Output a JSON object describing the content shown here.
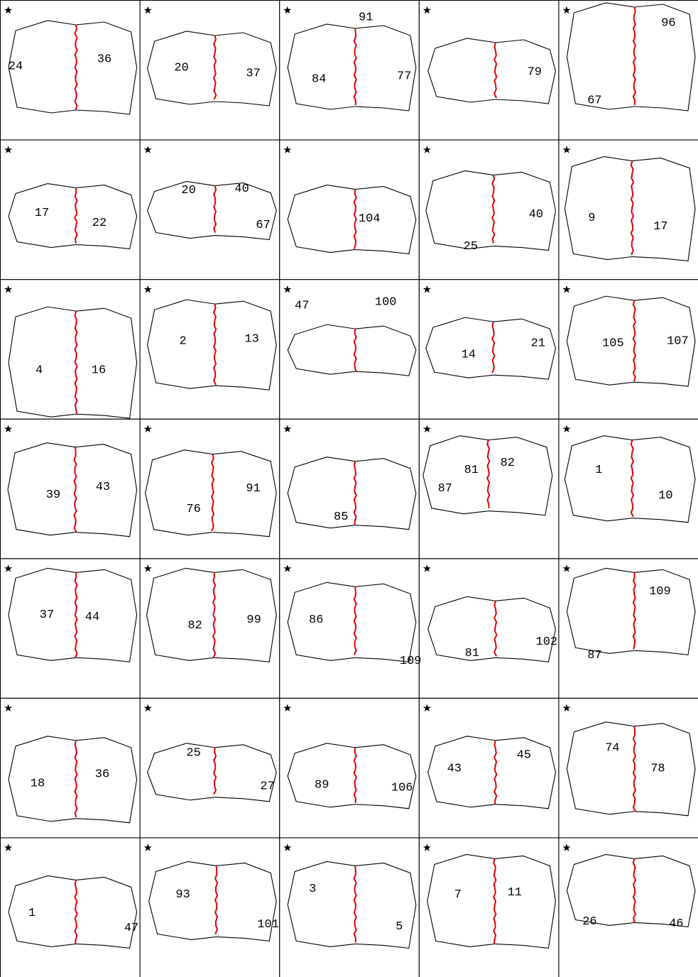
{
  "panels": [
    {
      "labels": [
        "24",
        "36"
      ]
    },
    {
      "labels": [
        "20",
        "37"
      ]
    },
    {
      "labels": [
        "91",
        "84",
        "77"
      ]
    },
    {
      "labels": [
        "79"
      ]
    },
    {
      "labels": [
        "96",
        "67"
      ]
    },
    {
      "labels": [
        "17",
        "22"
      ]
    },
    {
      "labels": [
        "20",
        "40",
        "67"
      ]
    },
    {
      "labels": [
        "104"
      ]
    },
    {
      "labels": [
        "40",
        "25"
      ]
    },
    {
      "labels": [
        "9",
        "17"
      ]
    },
    {
      "labels": [
        "4",
        "16"
      ]
    },
    {
      "labels": [
        "2",
        "13"
      ]
    },
    {
      "labels": [
        "47",
        "100"
      ]
    },
    {
      "labels": [
        "14",
        "21"
      ]
    },
    {
      "labels": [
        "105",
        "107"
      ]
    },
    {
      "labels": [
        "39",
        "43"
      ]
    },
    {
      "labels": [
        "76",
        "91"
      ]
    },
    {
      "labels": [
        "85"
      ]
    },
    {
      "labels": [
        "81",
        "82",
        "87"
      ]
    },
    {
      "labels": [
        "1",
        "10"
      ]
    },
    {
      "labels": [
        "37",
        "44"
      ]
    },
    {
      "labels": [
        "82",
        "99"
      ]
    },
    {
      "labels": [
        "86",
        "109"
      ]
    },
    {
      "labels": [
        "81",
        "102"
      ]
    },
    {
      "labels": [
        "109",
        "87"
      ]
    },
    {
      "labels": [
        "18",
        "36"
      ]
    },
    {
      "labels": [
        "25",
        "27"
      ]
    },
    {
      "labels": [
        "89",
        "106"
      ]
    },
    {
      "labels": [
        "43",
        "45"
      ]
    },
    {
      "labels": [
        "74",
        "78"
      ]
    },
    {
      "labels": [
        "1",
        "47"
      ]
    },
    {
      "labels": [
        "93",
        "101"
      ]
    },
    {
      "labels": [
        "3",
        "5"
      ]
    },
    {
      "labels": [
        "7",
        "11"
      ]
    },
    {
      "labels": [
        "26",
        "46"
      ]
    }
  ]
}
